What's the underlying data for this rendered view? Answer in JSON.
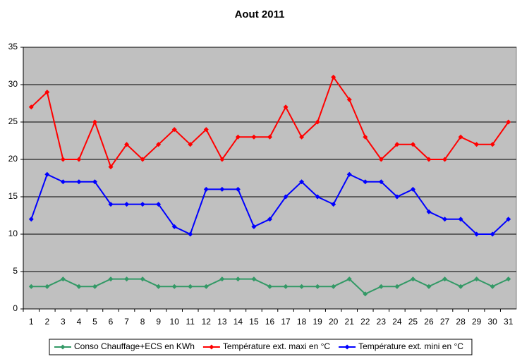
{
  "chart_data": {
    "type": "line",
    "title": "Aout 2011",
    "categories": [
      "1",
      "2",
      "3",
      "4",
      "5",
      "6",
      "7",
      "8",
      "9",
      "10",
      "11",
      "12",
      "13",
      "14",
      "15",
      "16",
      "17",
      "18",
      "19",
      "20",
      "21",
      "22",
      "23",
      "24",
      "25",
      "26",
      "27",
      "28",
      "29",
      "30",
      "31"
    ],
    "series": [
      {
        "name": "Conso Chauffage+ECS en KWh",
        "color": "#339966",
        "values": [
          3,
          3,
          4,
          3,
          3,
          4,
          4,
          4,
          3,
          3,
          3,
          3,
          4,
          4,
          4,
          3,
          3,
          3,
          3,
          3,
          4,
          2,
          3,
          3,
          4,
          3,
          4,
          3,
          4,
          3,
          4
        ]
      },
      {
        "name": "Température ext. maxi en °C",
        "color": "#ff0000",
        "values": [
          27,
          29,
          20,
          20,
          25,
          19,
          22,
          20,
          22,
          24,
          22,
          24,
          20,
          23,
          23,
          23,
          27,
          23,
          25,
          31,
          28,
          23,
          20,
          22,
          22,
          20,
          20,
          23,
          22,
          22,
          25
        ]
      },
      {
        "name": "Température ext. mini en °C",
        "color": "#0000ff",
        "values": [
          12,
          18,
          17,
          17,
          17,
          14,
          14,
          14,
          14,
          11,
          10,
          16,
          16,
          16,
          11,
          12,
          15,
          17,
          15,
          14,
          18,
          17,
          17,
          15,
          16,
          13,
          12,
          12,
          10,
          10,
          12
        ]
      }
    ],
    "ylim": [
      0,
      35
    ],
    "yticks": [
      0,
      5,
      10,
      15,
      20,
      25,
      30,
      35
    ],
    "grid": true,
    "legend": "bottom",
    "plot_background": "#c0c0c0"
  }
}
